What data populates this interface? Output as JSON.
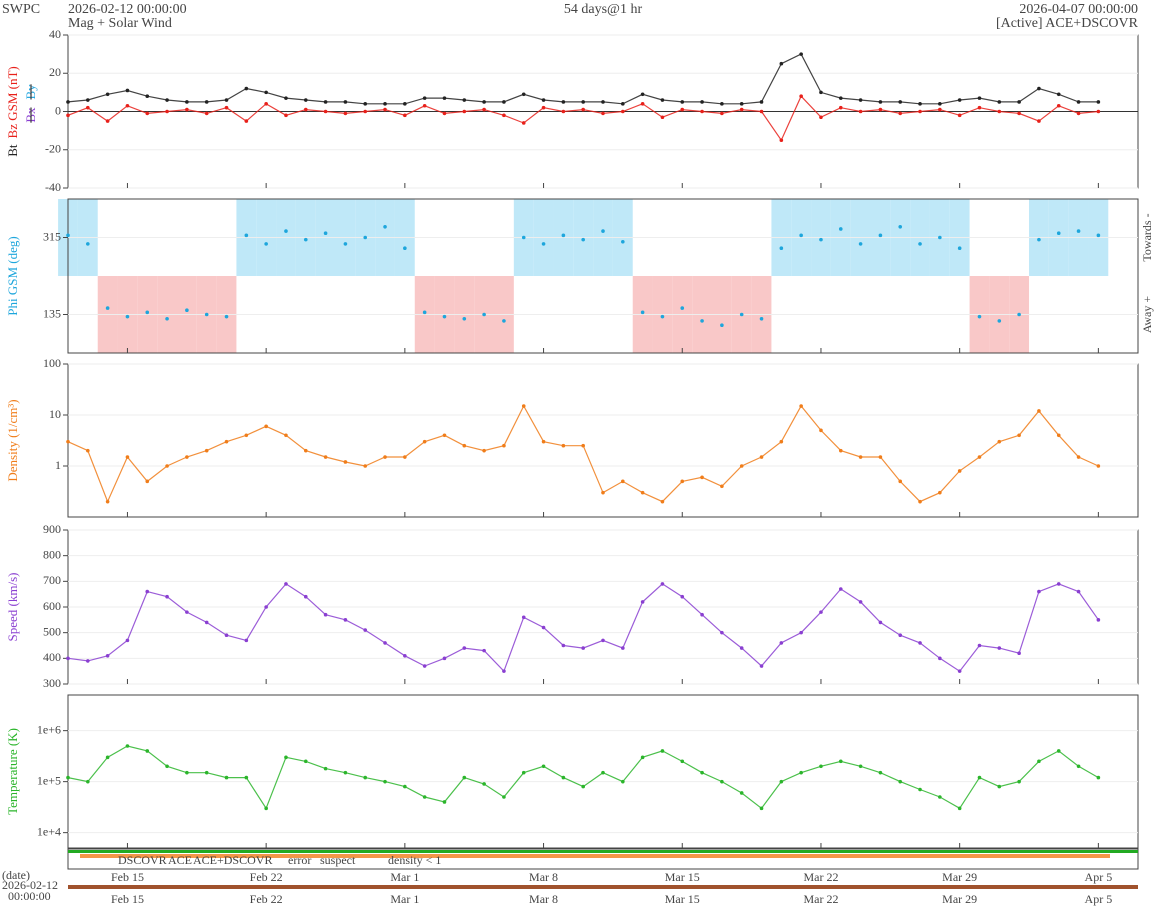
{
  "header": {
    "agency": "SWPC",
    "subtitle": "Mag + Solar Wind",
    "span": "54 days@1 hr",
    "source": "[Active] ACE+DSCOVR"
  },
  "chart_data": {
    "type": "line",
    "xlim": [
      "2026-02-12 00:00:00",
      "2026-04-07 00:00:00"
    ],
    "xticks": [
      {
        "value": "2026-02-15",
        "label": "Feb 15"
      },
      {
        "value": "2026-02-22",
        "label": "Feb 22"
      },
      {
        "value": "2026-03-01",
        "label": "Mar 1"
      },
      {
        "value": "2026-03-08",
        "label": "Mar 8"
      },
      {
        "value": "2026-03-15",
        "label": "Mar 15"
      },
      {
        "value": "2026-03-22",
        "label": "Mar 22"
      },
      {
        "value": "2026-03-29",
        "label": "Mar 29"
      },
      {
        "value": "2026-04-05",
        "label": "Apr 5"
      }
    ],
    "x": [
      "2026-02-12",
      "2026-02-13",
      "2026-02-14",
      "2026-02-15",
      "2026-02-16",
      "2026-02-17",
      "2026-02-18",
      "2026-02-19",
      "2026-02-20",
      "2026-02-21",
      "2026-02-22",
      "2026-02-23",
      "2026-02-24",
      "2026-02-25",
      "2026-02-26",
      "2026-02-27",
      "2026-02-28",
      "2026-03-01",
      "2026-03-02",
      "2026-03-03",
      "2026-03-04",
      "2026-03-05",
      "2026-03-06",
      "2026-03-07",
      "2026-03-08",
      "2026-03-09",
      "2026-03-10",
      "2026-03-11",
      "2026-03-12",
      "2026-03-13",
      "2026-03-14",
      "2026-03-15",
      "2026-03-16",
      "2026-03-17",
      "2026-03-18",
      "2026-03-19",
      "2026-03-20",
      "2026-03-21",
      "2026-03-22",
      "2026-03-23",
      "2026-03-24",
      "2026-03-25",
      "2026-03-26",
      "2026-03-27",
      "2026-03-28",
      "2026-03-29",
      "2026-03-30",
      "2026-03-31",
      "2026-04-01",
      "2026-04-02",
      "2026-04-03",
      "2026-04-04",
      "2026-04-05"
    ],
    "panels": [
      {
        "ylim": [
          -40,
          40
        ],
        "yticks": [
          -40,
          -20,
          0,
          20,
          40
        ],
        "log": false,
        "grid": true,
        "zero_line": true,
        "mode": "lines+markers",
        "extra_labels": [
          {
            "text": "Bx",
            "color": "#8a3fd1"
          },
          {
            "text": "By",
            "color": "#29a8e0"
          }
        ],
        "series": [
          {
            "name": "Bt",
            "color": "#222222",
            "values": [
              5,
              6,
              9,
              11,
              8,
              6,
              5,
              5,
              6,
              12,
              10,
              7,
              6,
              5,
              5,
              4,
              4,
              4,
              7,
              7,
              6,
              5,
              5,
              9,
              6,
              5,
              5,
              5,
              4,
              9,
              6,
              5,
              5,
              4,
              4,
              5,
              25,
              30,
              10,
              7,
              6,
              5,
              5,
              4,
              4,
              6,
              7,
              5,
              5,
              12,
              9,
              5,
              5
            ]
          },
          {
            "name": "Bz GSM (nT)",
            "color": "#e8201a",
            "values": [
              -2,
              2,
              -5,
              3,
              -1,
              0,
              1,
              -1,
              2,
              -5,
              4,
              -2,
              1,
              0,
              -1,
              0,
              1,
              -2,
              3,
              -1,
              0,
              1,
              -2,
              -6,
              2,
              0,
              1,
              -1,
              0,
              4,
              -3,
              1,
              0,
              -1,
              1,
              0,
              -15,
              8,
              -3,
              2,
              0,
              1,
              -1,
              0,
              1,
              -2,
              2,
              0,
              -1,
              -5,
              3,
              -1,
              0
            ]
          }
        ]
      },
      {
        "ylim": [
          45,
          405
        ],
        "yticks": [
          135,
          315
        ],
        "log": false,
        "grid": true,
        "mode": "markers",
        "sector_colors": [
          "#bfe8f8",
          "#f9c8c8"
        ],
        "right_labels": [
          "Towards -",
          "Away +"
        ],
        "series": [
          {
            "name": "Phi GSM (deg)",
            "color": "#1ea6dc",
            "values": [
              320,
              300,
              150,
              130,
              140,
              125,
              145,
              135,
              130,
              320,
              300,
              330,
              310,
              325,
              300,
              315,
              340,
              290,
              140,
              130,
              125,
              135,
              120,
              315,
              300,
              320,
              310,
              330,
              305,
              140,
              130,
              150,
              120,
              110,
              135,
              125,
              290,
              320,
              310,
              335,
              300,
              320,
              340,
              300,
              315,
              290,
              130,
              120,
              135,
              310,
              325,
              330,
              320
            ]
          }
        ]
      },
      {
        "ylim": [
          0.1,
          100
        ],
        "yticks": [
          1,
          10,
          100
        ],
        "log": true,
        "grid": true,
        "mode": "lines+markers",
        "series": [
          {
            "name": "Density (1/cm³)",
            "color": "#f07d1a",
            "values": [
              3,
              2,
              0.2,
              1.5,
              0.5,
              1,
              1.5,
              2,
              3,
              4,
              6,
              4,
              2,
              1.5,
              1.2,
              1,
              1.5,
              1.5,
              3,
              4,
              2.5,
              2,
              2.5,
              15,
              3,
              2.5,
              2.5,
              0.3,
              0.5,
              0.3,
              0.2,
              0.5,
              0.6,
              0.4,
              1,
              1.5,
              3,
              15,
              5,
              2,
              1.5,
              1.5,
              0.5,
              0.2,
              0.3,
              0.8,
              1.5,
              3,
              4,
              12,
              4,
              1.5,
              1
            ]
          }
        ]
      },
      {
        "ylim": [
          300,
          900
        ],
        "yticks": [
          300,
          400,
          500,
          600,
          700,
          800,
          900
        ],
        "log": false,
        "grid": true,
        "mode": "lines+markers",
        "series": [
          {
            "name": "Speed (km/s)",
            "color": "#8a3fd1",
            "values": [
              400,
              390,
              410,
              470,
              660,
              640,
              580,
              540,
              490,
              470,
              600,
              690,
              640,
              570,
              550,
              510,
              460,
              410,
              370,
              400,
              440,
              430,
              350,
              560,
              520,
              450,
              440,
              470,
              440,
              620,
              690,
              640,
              570,
              500,
              440,
              370,
              460,
              500,
              580,
              670,
              620,
              540,
              490,
              460,
              400,
              350,
              450,
              440,
              420,
              660,
              690,
              660,
              550
            ]
          }
        ]
      },
      {
        "ylim": [
          5000,
          5000000
        ],
        "yticks": [
          {
            "value": 10000,
            "label": "1e+4"
          },
          {
            "value": 100000,
            "label": "1e+5"
          },
          {
            "value": 1000000,
            "label": "1e+6"
          }
        ],
        "log": true,
        "grid": true,
        "mode": "lines+markers",
        "series": [
          {
            "name": "Temperature (K)",
            "color": "#2bb52b",
            "values": [
              120000,
              100000,
              300000,
              500000,
              400000,
              200000,
              150000,
              150000,
              120000,
              120000,
              30000,
              300000,
              250000,
              180000,
              150000,
              120000,
              100000,
              80000,
              50000,
              40000,
              120000,
              90000,
              50000,
              150000,
              200000,
              120000,
              80000,
              150000,
              100000,
              300000,
              400000,
              250000,
              150000,
              100000,
              60000,
              30000,
              100000,
              150000,
              200000,
              250000,
              200000,
              150000,
              100000,
              70000,
              50000,
              30000,
              120000,
              80000,
              100000,
              250000,
              400000,
              200000,
              120000
            ]
          }
        ]
      }
    ]
  },
  "status_legend": [
    {
      "text": "DSCOVR",
      "color": "#0000ff"
    },
    {
      "text": "ACE",
      "color": "#22aa22"
    },
    {
      "text": "ACE+DSCOVR",
      "color": "#ff00ff"
    },
    {
      "text": "error",
      "color": "#e8201a"
    },
    {
      "text": "suspect",
      "color": "#e6c200"
    },
    {
      "text": "density < 1",
      "color": "#f07d1a"
    }
  ],
  "footer": {
    "date_label": "(date)",
    "start_date": "2026-02-12",
    "start_time": "00:00:00"
  }
}
